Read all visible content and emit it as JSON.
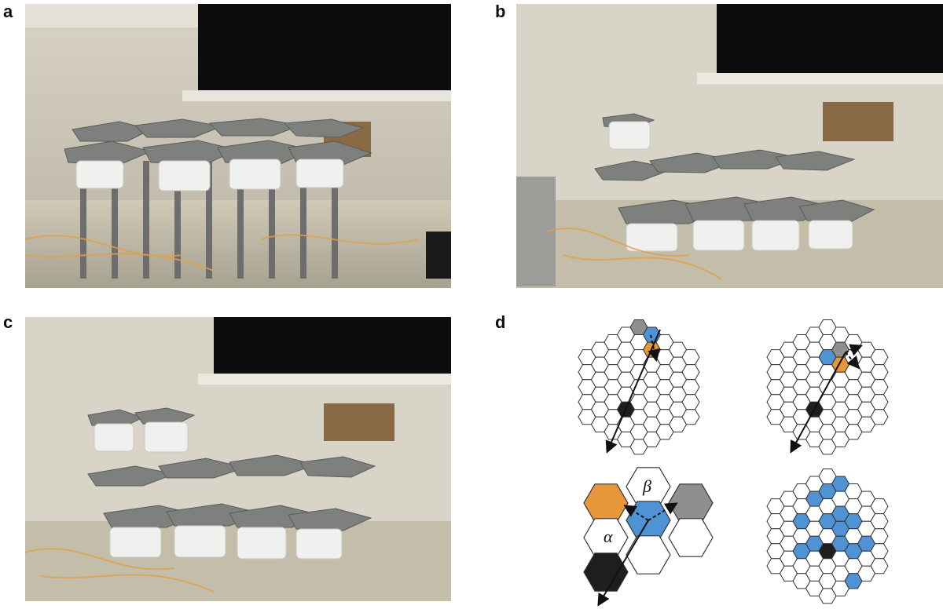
{
  "panels": {
    "a": {
      "label": "a"
    },
    "b": {
      "label": "b"
    },
    "c": {
      "label": "c"
    },
    "d": {
      "label": "d"
    }
  },
  "diagram": {
    "greek_beta": "β",
    "greek_alpha": "α",
    "colors": {
      "hex_stroke": "#333333",
      "empty": "#ffffff",
      "blue": "#4f93d4",
      "orange": "#e6973a",
      "grey": "#8f8f8f",
      "black": "#1e1e1e"
    }
  }
}
